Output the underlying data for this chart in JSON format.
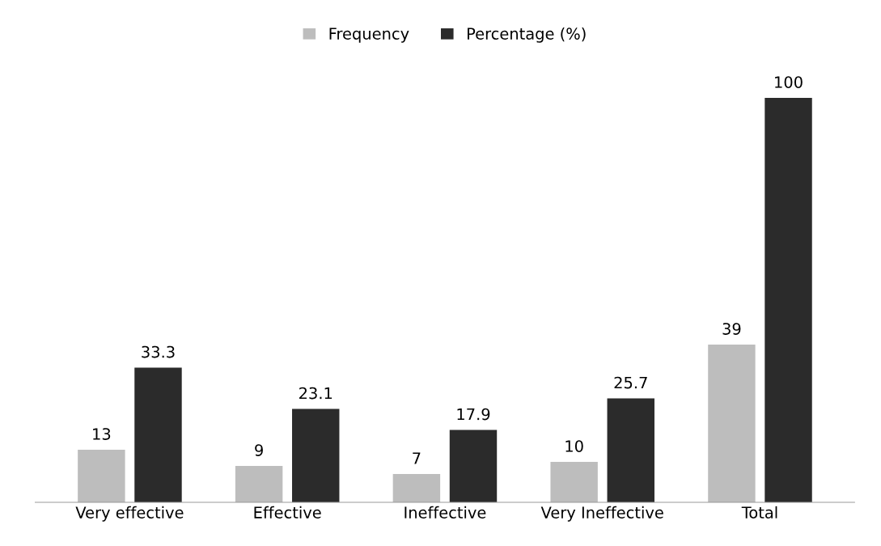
{
  "chart_data": {
    "type": "bar",
    "categories": [
      "Very effective",
      "Effective",
      "Ineffective",
      "Very Ineffective",
      "Total"
    ],
    "series": [
      {
        "name": "Frequency",
        "color": "#bdbdbd",
        "values": [
          13,
          9,
          7,
          10,
          39
        ]
      },
      {
        "name": "Percentage (%)",
        "color": "#2b2b2b",
        "values": [
          33.3,
          23.1,
          17.9,
          25.7,
          100
        ]
      }
    ],
    "data_labels": true,
    "legend": "top",
    "grid": false
  }
}
